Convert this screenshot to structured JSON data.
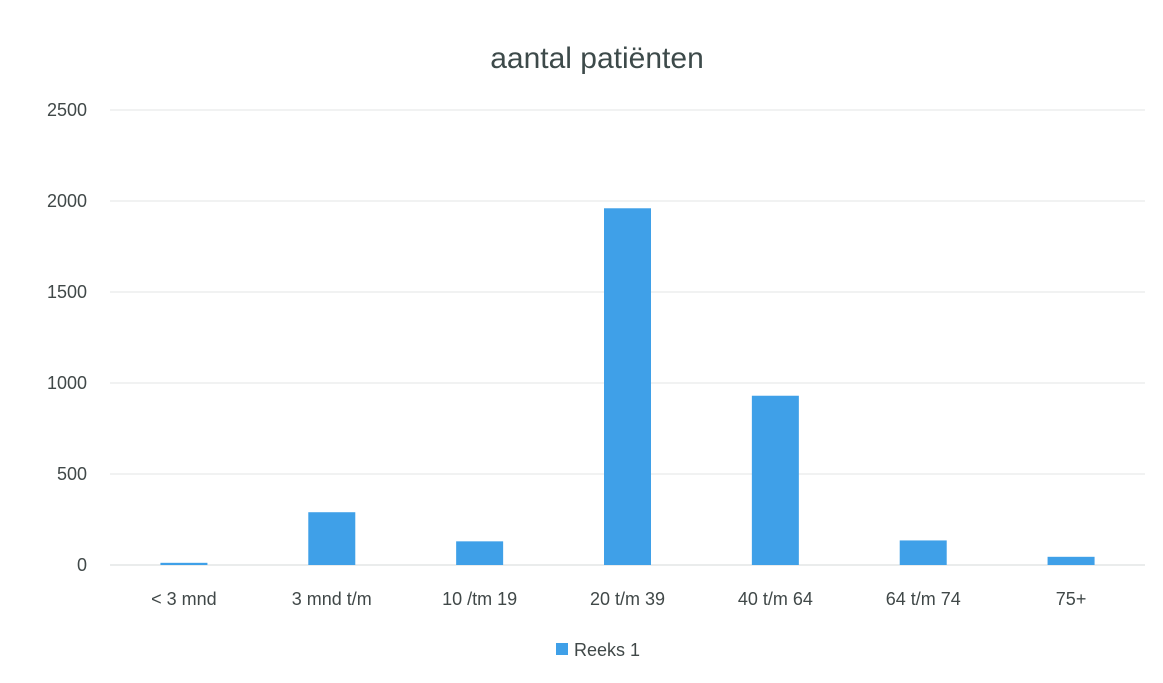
{
  "chart_data": {
    "type": "bar",
    "title": "aantal patiënten",
    "xlabel": "",
    "ylabel": "",
    "categories": [
      "< 3 mnd",
      "3 mnd t/m",
      "10 /tm 19",
      "20 t/m 39",
      "40 t/m 64",
      "64 t/m 74",
      "75+"
    ],
    "series": [
      {
        "name": "Reeks 1",
        "values": [
          12,
          290,
          130,
          1960,
          930,
          135,
          45
        ],
        "color": "#3fa0e8"
      }
    ],
    "ylim": [
      0,
      2500
    ],
    "yticks": [
      0,
      500,
      1000,
      1500,
      2000,
      2500
    ],
    "grid": true,
    "legend_position": "bottom"
  }
}
